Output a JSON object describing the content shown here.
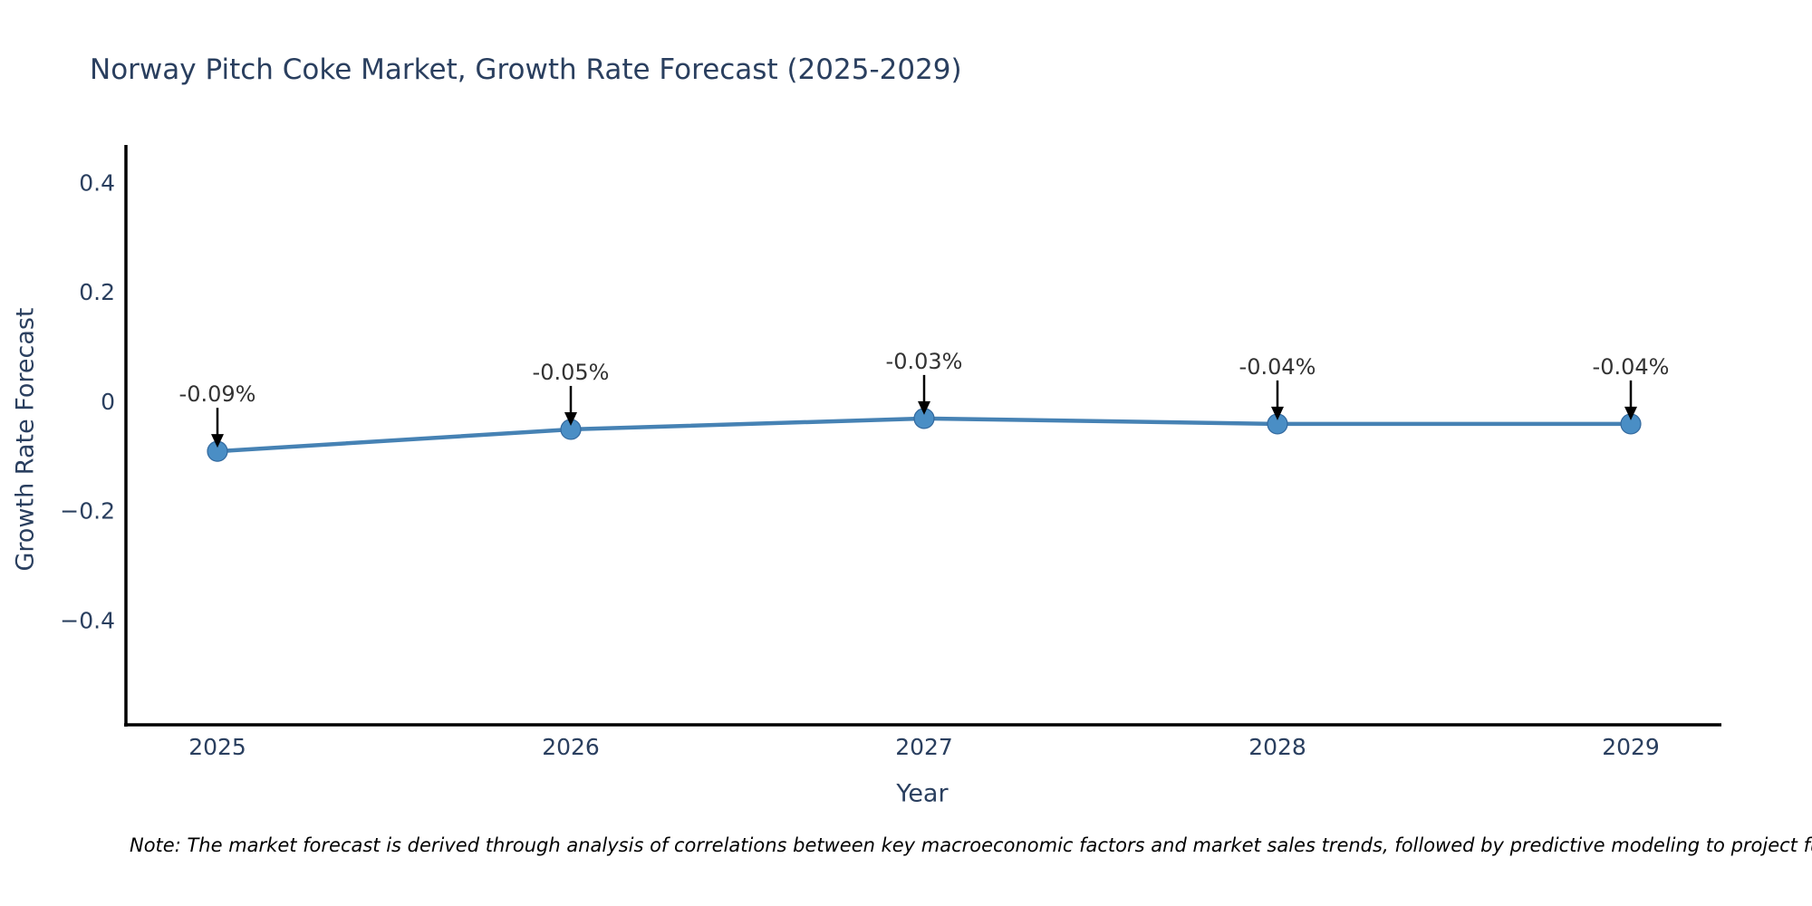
{
  "note": "Note: The market forecast is derived through analysis of correlations between key macroeconomic factors and market sales trends, followed by predictive modeling to project future sales.",
  "chart_data": {
    "type": "line",
    "title": "Norway Pitch Coke Market, Growth Rate Forecast (2025-2029)",
    "xlabel": "Year",
    "ylabel": "Growth Rate Forecast",
    "x": [
      "2025",
      "2026",
      "2027",
      "2028",
      "2029"
    ],
    "series": [
      {
        "name": "Growth Rate Forecast",
        "values": [
          -0.09,
          -0.05,
          -0.03,
          -0.04,
          -0.04
        ]
      }
    ],
    "annotations": [
      "-0.09%",
      "-0.05%",
      "-0.03%",
      "-0.04%",
      "-0.04%"
    ],
    "yticks": [
      {
        "label": "0.4",
        "value": 0.4
      },
      {
        "label": "0.2",
        "value": 0.2
      },
      {
        "label": "0",
        "value": 0.0
      },
      {
        "label": "−0.2",
        "value": -0.2
      },
      {
        "label": "−0.4",
        "value": -0.4
      }
    ],
    "ylim": [
      -0.59,
      0.47
    ],
    "grid": false,
    "legend": "none",
    "colors": {
      "line": "#4682b4",
      "marker_fill": "#4a8ec5",
      "marker_edge": "#33699e",
      "axis": "#000000",
      "tick_label": "#2a3f5f",
      "annotation_text": "#333333",
      "annotation_arrow": "#000000",
      "title": "#2a3f5f",
      "background": "#ffffff"
    }
  }
}
